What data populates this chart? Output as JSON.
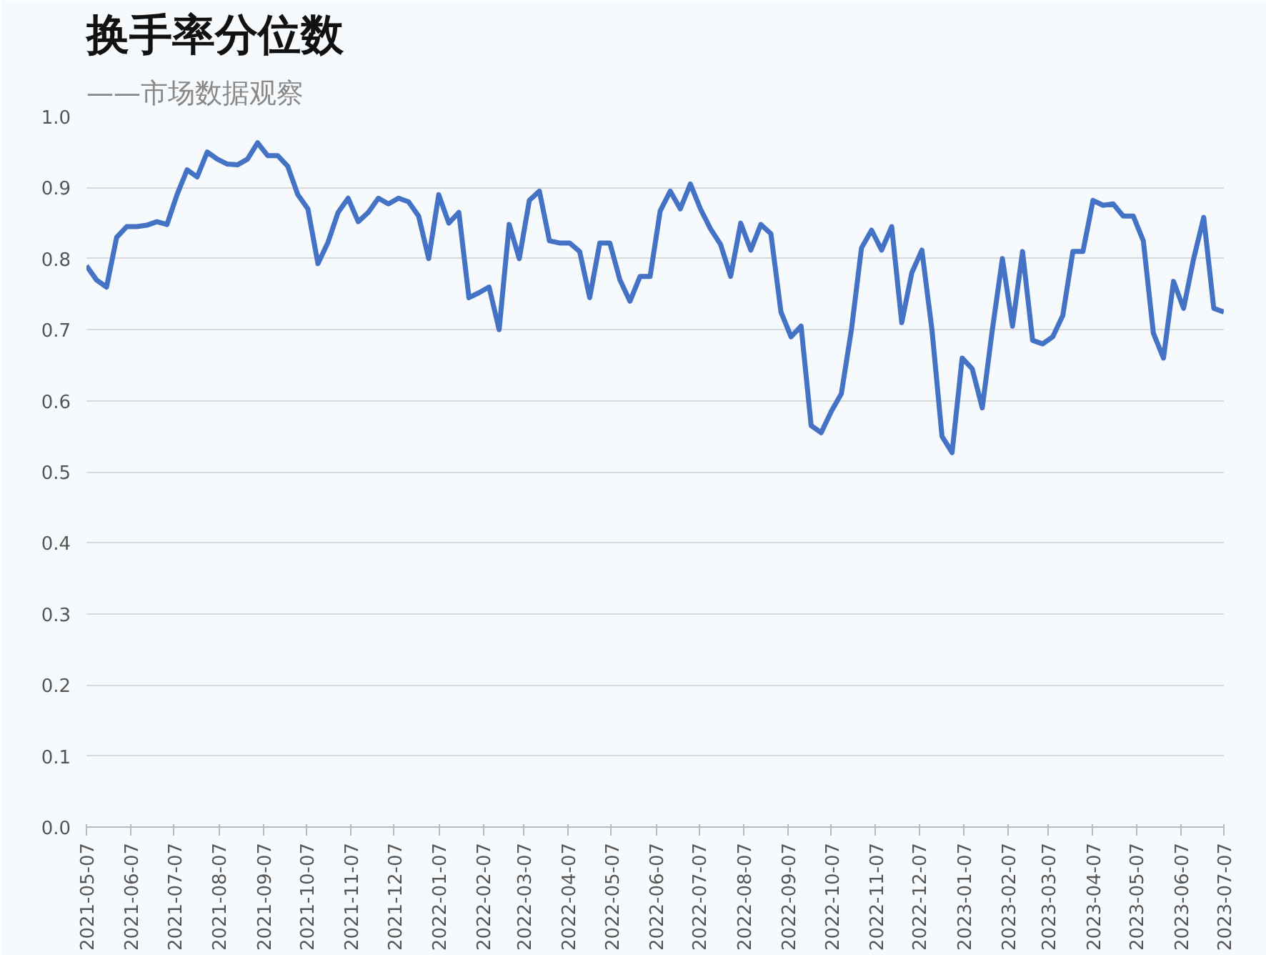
{
  "chart_data": {
    "type": "line",
    "title": "换手率分位数",
    "subtitle": "——市场数据观察",
    "x": [
      "2021-05-07",
      "2021-05-14",
      "2021-05-21",
      "2021-05-28",
      "2021-06-04",
      "2021-06-11",
      "2021-06-18",
      "2021-06-25",
      "2021-07-02",
      "2021-07-09",
      "2021-07-16",
      "2021-07-23",
      "2021-07-30",
      "2021-08-06",
      "2021-08-13",
      "2021-08-20",
      "2021-08-27",
      "2021-09-03",
      "2021-09-10",
      "2021-09-17",
      "2021-09-24",
      "2021-10-01",
      "2021-10-08",
      "2021-10-15",
      "2021-10-22",
      "2021-10-29",
      "2021-11-05",
      "2021-11-12",
      "2021-11-19",
      "2021-11-26",
      "2021-12-03",
      "2021-12-10",
      "2021-12-17",
      "2021-12-24",
      "2021-12-31",
      "2022-01-07",
      "2022-01-14",
      "2022-01-21",
      "2022-01-28",
      "2022-02-04",
      "2022-02-11",
      "2022-02-18",
      "2022-02-25",
      "2022-03-04",
      "2022-03-11",
      "2022-03-18",
      "2022-03-25",
      "2022-04-01",
      "2022-04-08",
      "2022-04-15",
      "2022-04-22",
      "2022-04-29",
      "2022-05-06",
      "2022-05-13",
      "2022-05-20",
      "2022-05-27",
      "2022-06-03",
      "2022-06-10",
      "2022-06-17",
      "2022-06-24",
      "2022-07-01",
      "2022-07-08",
      "2022-07-15",
      "2022-07-22",
      "2022-07-29",
      "2022-08-05",
      "2022-08-12",
      "2022-08-19",
      "2022-08-26",
      "2022-09-02",
      "2022-09-09",
      "2022-09-16",
      "2022-09-23",
      "2022-09-30",
      "2022-10-07",
      "2022-10-14",
      "2022-10-21",
      "2022-10-28",
      "2022-11-04",
      "2022-11-11",
      "2022-11-18",
      "2022-11-25",
      "2022-12-02",
      "2022-12-09",
      "2022-12-16",
      "2022-12-23",
      "2022-12-30",
      "2023-01-06",
      "2023-01-13",
      "2023-01-20",
      "2023-01-27",
      "2023-02-03",
      "2023-02-10",
      "2023-02-17",
      "2023-02-24",
      "2023-03-03",
      "2023-03-10",
      "2023-03-17",
      "2023-03-24",
      "2023-03-31",
      "2023-04-07",
      "2023-04-14",
      "2023-04-21",
      "2023-04-28",
      "2023-05-05",
      "2023-05-12",
      "2023-05-19",
      "2023-05-26",
      "2023-06-02",
      "2023-06-09",
      "2023-06-16",
      "2023-06-23",
      "2023-06-30",
      "2023-07-07"
    ],
    "series": [
      {
        "color": "#4472c4",
        "values": [
          0.79,
          0.77,
          0.76,
          0.83,
          0.845,
          0.845,
          0.847,
          0.852,
          0.848,
          0.89,
          0.925,
          0.915,
          0.95,
          0.94,
          0.933,
          0.932,
          0.94,
          0.963,
          0.945,
          0.945,
          0.93,
          0.89,
          0.87,
          0.793,
          0.823,
          0.865,
          0.885,
          0.852,
          0.865,
          0.885,
          0.877,
          0.885,
          0.88,
          0.86,
          0.8,
          0.89,
          0.85,
          0.865,
          0.745,
          0.752,
          0.76,
          0.7,
          0.848,
          0.8,
          0.882,
          0.895,
          0.825,
          0.822,
          0.822,
          0.81,
          0.745,
          0.822,
          0.822,
          0.77,
          0.74,
          0.775,
          0.775,
          0.867,
          0.895,
          0.87,
          0.905,
          0.87,
          0.842,
          0.82,
          0.775,
          0.85,
          0.812,
          0.848,
          0.835,
          0.725,
          0.69,
          0.705,
          0.565,
          0.555,
          0.585,
          0.61,
          0.7,
          0.815,
          0.84,
          0.812,
          0.845,
          0.71,
          0.78,
          0.812,
          0.7,
          0.55,
          0.527,
          0.66,
          0.645,
          0.59,
          0.7,
          0.8,
          0.705,
          0.81,
          0.685,
          0.68,
          0.69,
          0.72,
          0.81,
          0.81,
          0.882,
          0.875,
          0.877,
          0.86,
          0.86,
          0.825,
          0.695,
          0.66,
          0.768,
          0.73,
          0.8,
          0.858,
          0.73,
          0.725
        ]
      }
    ],
    "xlim": [
      "2021-05-07",
      "2023-07-07"
    ],
    "xticks": [
      "2021-05-07",
      "2021-06-07",
      "2021-07-07",
      "2021-08-07",
      "2021-09-07",
      "2021-10-07",
      "2021-11-07",
      "2021-12-07",
      "2022-01-07",
      "2022-02-07",
      "2022-03-07",
      "2022-04-07",
      "2022-05-07",
      "2022-06-07",
      "2022-07-07",
      "2022-08-07",
      "2022-09-07",
      "2022-10-07",
      "2022-11-07",
      "2022-12-07",
      "2023-01-07",
      "2023-02-07",
      "2023-03-07",
      "2023-04-07",
      "2023-05-07",
      "2023-06-07",
      "2023-07-07"
    ],
    "ylim": [
      0,
      1
    ],
    "yticks": [
      {
        "value": 0,
        "label": "0.0"
      },
      {
        "value": 0.1,
        "label": "0.1"
      },
      {
        "value": 0.2,
        "label": "0.2"
      },
      {
        "value": 0.3,
        "label": "0.3"
      },
      {
        "value": 0.4,
        "label": "0.4"
      },
      {
        "value": 0.5,
        "label": "0.5"
      },
      {
        "value": 0.6,
        "label": "0.6"
      },
      {
        "value": 0.7,
        "label": "0.7"
      },
      {
        "value": 0.8,
        "label": "0.8"
      },
      {
        "value": 0.9,
        "label": "0.9"
      },
      {
        "value": 1,
        "label": "1.0"
      }
    ],
    "grid": "y",
    "marker": "none",
    "line_style": "solid"
  }
}
